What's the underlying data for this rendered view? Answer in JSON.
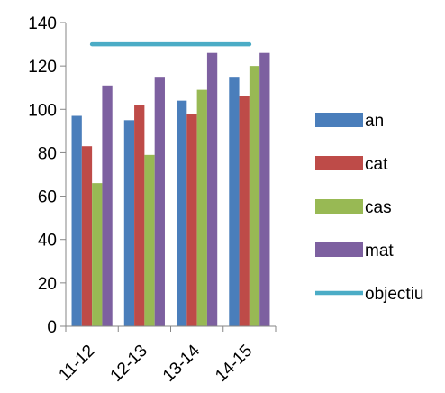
{
  "chart_data": {
    "type": "bar",
    "title": "",
    "xlabel": "",
    "ylabel": "",
    "categories": [
      "11-12",
      "12-13",
      "13-14",
      "14-15"
    ],
    "ylim": [
      0,
      140
    ],
    "yticks": [
      "0",
      "20",
      "40",
      "60",
      "80",
      "100",
      "120",
      "140"
    ],
    "grid": false,
    "legend_position": "right",
    "series": [
      {
        "name": "an",
        "values": [
          97,
          95,
          104,
          115
        ],
        "color": "#4A7EBB"
      },
      {
        "name": "cat",
        "values": [
          83,
          102,
          98,
          106
        ],
        "color": "#BE4B48"
      },
      {
        "name": "cas",
        "values": [
          66,
          79,
          109,
          120
        ],
        "color": "#98B954"
      },
      {
        "name": "mat",
        "values": [
          111,
          115,
          126,
          126
        ],
        "color": "#7D60A0"
      }
    ],
    "lines": [
      {
        "name": "objectiu",
        "x_from": "11-12",
        "x_to": "14-15",
        "value": 130,
        "color": "#4BACC6"
      }
    ]
  }
}
